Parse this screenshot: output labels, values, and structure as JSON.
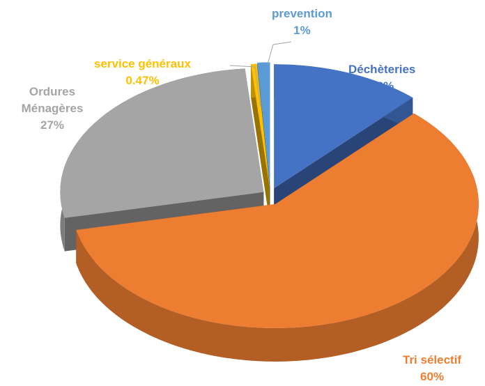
{
  "chart_data": {
    "type": "pie3d",
    "categories": [
      "Déchèteries",
      "Tri sélectif",
      "Ordures Ménagères",
      "service généraux",
      "prevention"
    ],
    "values": [
      12,
      60,
      27,
      0.47,
      1
    ],
    "value_labels": [
      "12%",
      "60%",
      "27%",
      "0.47%",
      "1%"
    ],
    "colors": [
      "#4472c4",
      "#ed7d31",
      "#a5a5a5",
      "#ffc000",
      "#5b9bd5"
    ]
  }
}
